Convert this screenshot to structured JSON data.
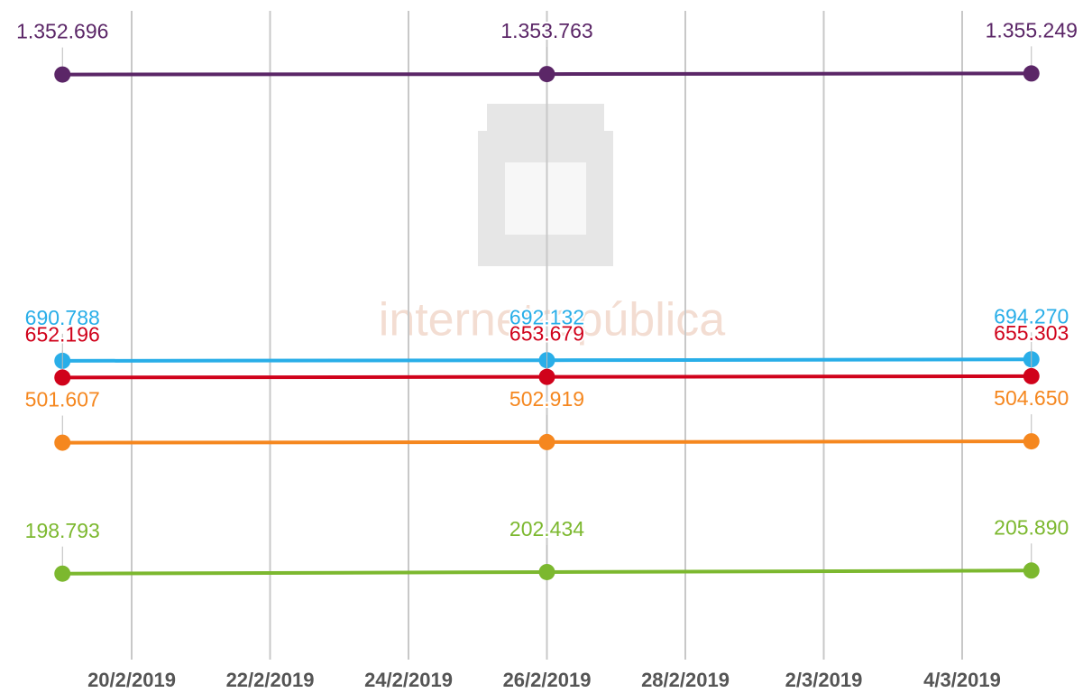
{
  "chart_data": {
    "type": "line",
    "watermark": "internetrepública",
    "x": [
      "2019-02-19",
      "2019-02-26",
      "2019-03-05"
    ],
    "xlim": [
      "2019-02-18",
      "2019-03-06"
    ],
    "xticks": [
      {
        "value": "2019-02-20",
        "label": "20/2/2019"
      },
      {
        "value": "2019-02-22",
        "label": "22/2/2019"
      },
      {
        "value": "2019-02-24",
        "label": "24/2/2019"
      },
      {
        "value": "2019-02-26",
        "label": "26/2/2019"
      },
      {
        "value": "2019-02-28",
        "label": "28/2/2019"
      },
      {
        "value": "2019-03-02",
        "label": "2/3/2019"
      },
      {
        "value": "2019-03-04",
        "label": "4/3/2019"
      }
    ],
    "ylim": [
      0,
      1500000
    ],
    "grid": true,
    "series": [
      {
        "color": "#5b2667",
        "values": [
          1352696,
          1353763,
          1355249
        ],
        "value_labels": [
          "1.352.696",
          "1.353.763",
          "1.355.249"
        ]
      },
      {
        "color": "#29aee8",
        "values": [
          690788,
          692132,
          694270
        ],
        "value_labels": [
          "690.788",
          "692.132",
          "694.270"
        ]
      },
      {
        "color": "#d0021b",
        "values": [
          652196,
          653679,
          655303
        ],
        "value_labels": [
          "652.196",
          "653.679",
          "655.303"
        ]
      },
      {
        "color": "#f5871f",
        "values": [
          501607,
          502919,
          504650
        ],
        "value_labels": [
          "501.607",
          "502.919",
          "504.650"
        ]
      },
      {
        "color": "#7cb82f",
        "values": [
          198793,
          202434,
          205890
        ],
        "value_labels": [
          "198.793",
          "202.434",
          "205.890"
        ]
      }
    ]
  }
}
